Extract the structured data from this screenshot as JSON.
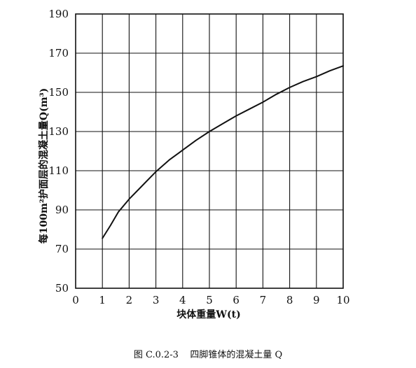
{
  "chart_data": {
    "type": "line",
    "title": "",
    "xlabel": "块体重量W(t)",
    "ylabel": "每100m²护面层的混凝土量Q(m³)",
    "xlim": [
      0,
      10
    ],
    "ylim": [
      50,
      190
    ],
    "x_ticks": [
      "0",
      "1",
      "2",
      "3",
      "4",
      "5",
      "6",
      "7",
      "8",
      "9",
      "10"
    ],
    "y_ticks": [
      "50",
      "70",
      "90",
      "110",
      "130",
      "150",
      "170",
      "190"
    ],
    "grid": true,
    "series": [
      {
        "points": [
          [
            1.0,
            75.5
          ],
          [
            1.3,
            82
          ],
          [
            1.6,
            89
          ],
          [
            2.0,
            95.5
          ],
          [
            2.5,
            102.5
          ],
          [
            3.0,
            109.5
          ],
          [
            3.5,
            115.5
          ],
          [
            4.0,
            120.5
          ],
          [
            4.5,
            125.5
          ],
          [
            5.0,
            130
          ],
          [
            5.5,
            134
          ],
          [
            6.0,
            138
          ],
          [
            6.5,
            141.5
          ],
          [
            7.0,
            145
          ],
          [
            7.5,
            149
          ],
          [
            8.0,
            152.5
          ],
          [
            8.5,
            155.5
          ],
          [
            9.0,
            158
          ],
          [
            9.5,
            161
          ],
          [
            10.0,
            163.5
          ]
        ]
      }
    ]
  },
  "caption": {
    "figure_number": "图 C.0.2-3",
    "figure_title": "四脚锥体的混凝土量 Q"
  }
}
